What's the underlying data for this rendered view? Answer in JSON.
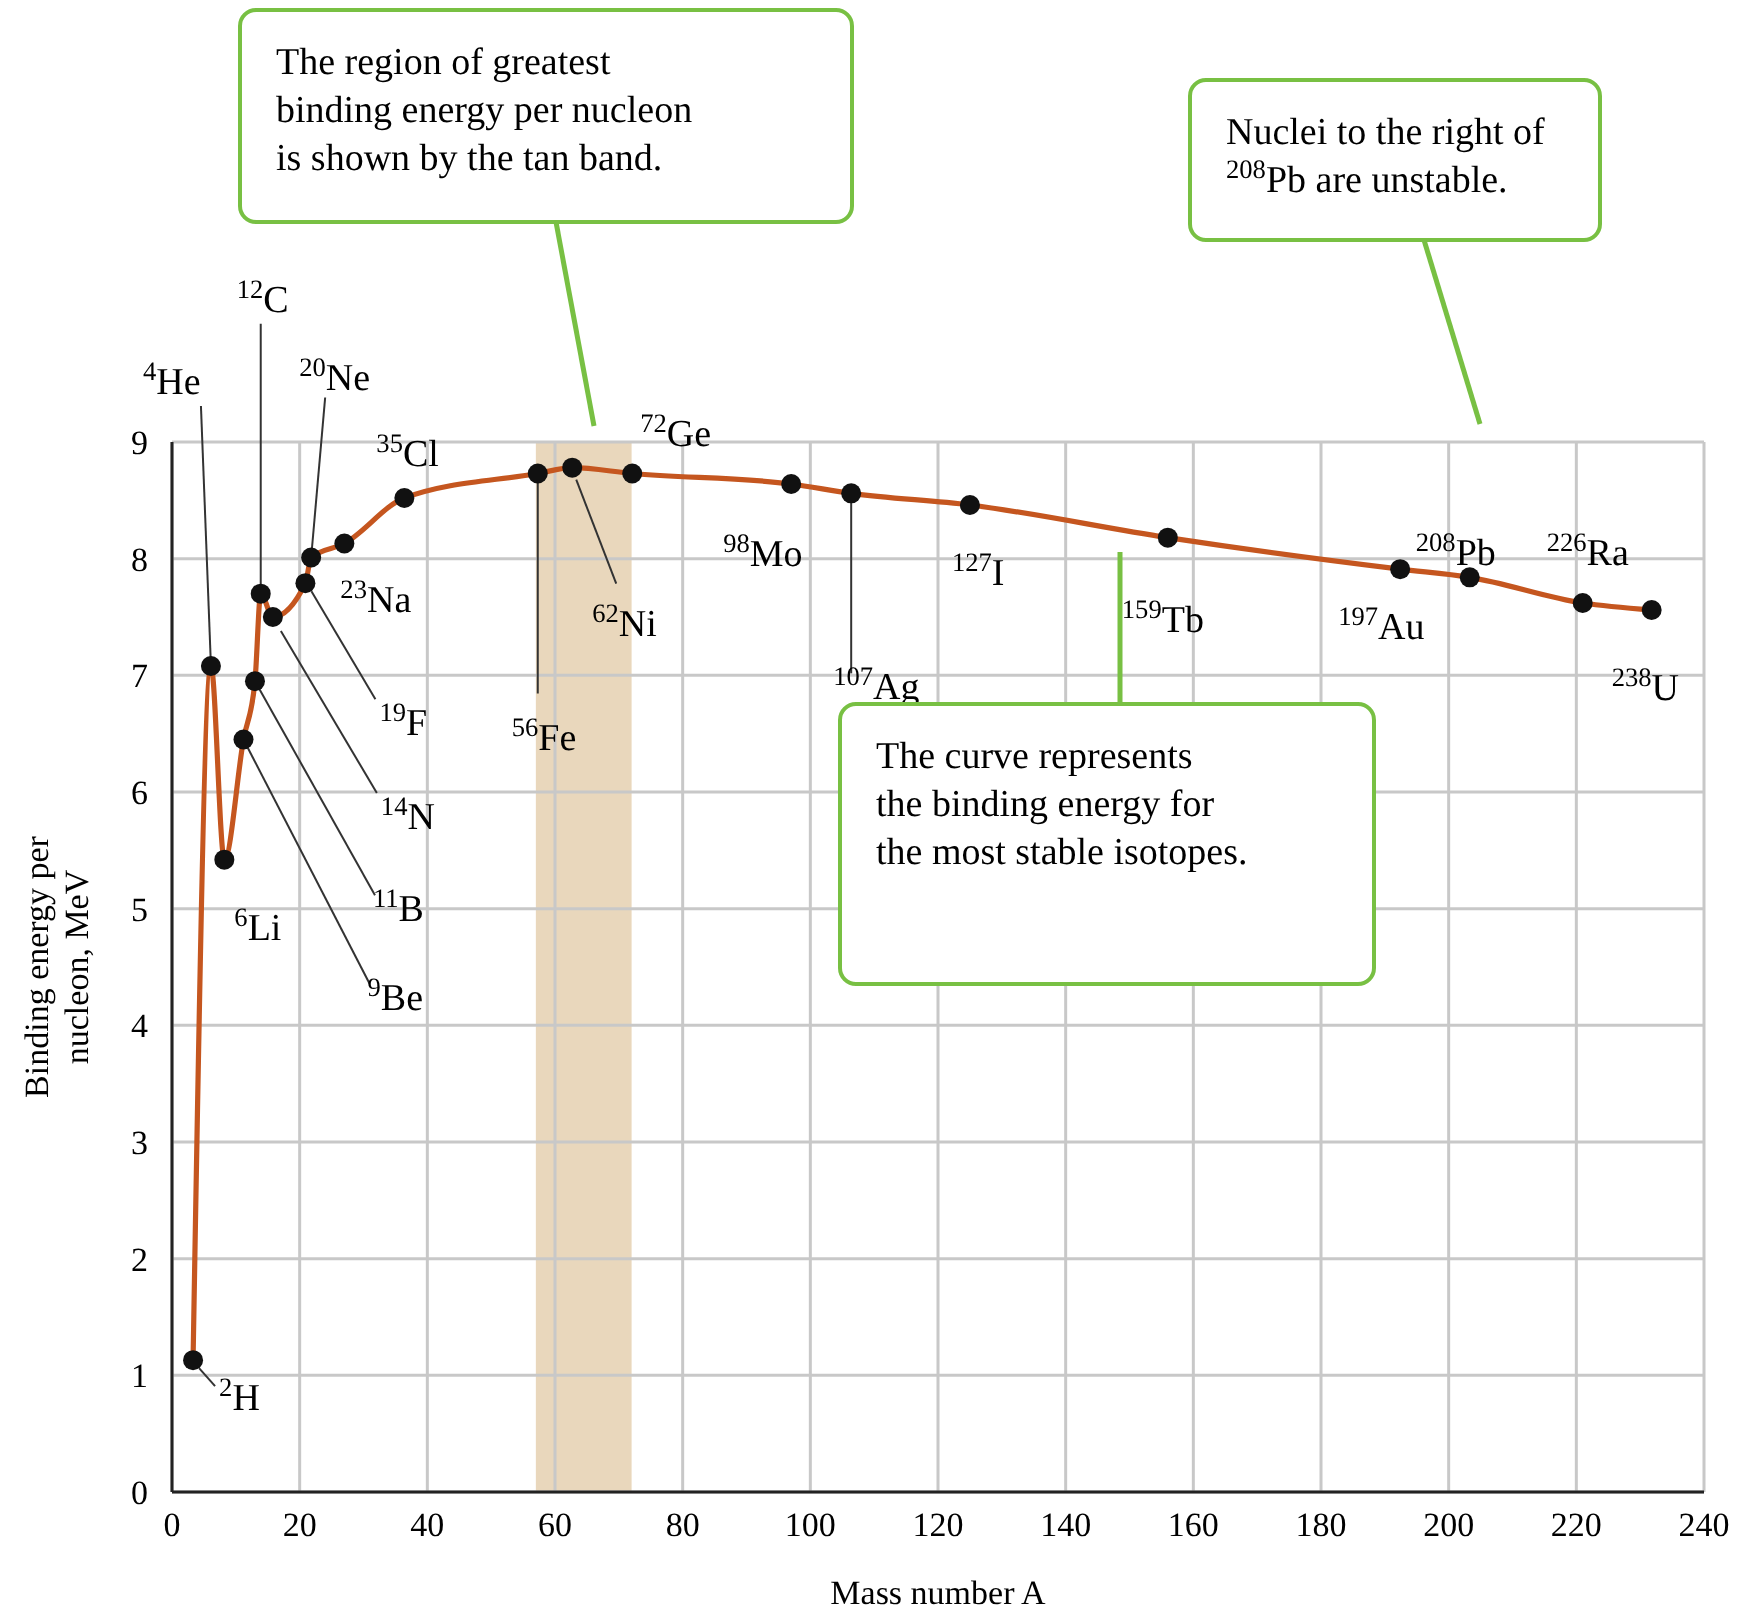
{
  "chart_data": {
    "type": "line",
    "xlabel": "Mass number A",
    "ylabel": "Binding energy per\nnucleon, MeV",
    "x": [
      3.3,
      6.1,
      8.2,
      11.2,
      13,
      13.9,
      15.8,
      20.9,
      21.8,
      27,
      36.4,
      57.3,
      62.7,
      72.1,
      97,
      106.4,
      125,
      156,
      192.4,
      203.3,
      221,
      231.8
    ],
    "series": [
      {
        "color": "#c5561f",
        "values": [
          1.13,
          7.08,
          5.42,
          6.45,
          6.95,
          7.7,
          7.5,
          7.79,
          8.01,
          8.13,
          8.52,
          8.73,
          8.78,
          8.73,
          8.64,
          8.56,
          8.46,
          8.18,
          7.91,
          7.84,
          7.62,
          7.56
        ]
      }
    ],
    "marker": "circle",
    "line_style": "solid",
    "grid": true,
    "xlim": [
      0,
      240
    ],
    "xticks": [
      0,
      20,
      40,
      60,
      80,
      100,
      120,
      140,
      160,
      180,
      200,
      220,
      240
    ],
    "ylim": [
      0,
      9
    ],
    "yticks": [
      0,
      1,
      2,
      3,
      4,
      5,
      6,
      7,
      8,
      9
    ],
    "bands": [
      {
        "axis": "x",
        "from": 57,
        "to": 72,
        "color": "#e9d7bc"
      }
    ],
    "annotations": [
      {
        "text": "$^{2}$H",
        "x": 3.3,
        "y": 1.13
      },
      {
        "text": "$^{4}$He",
        "x": 6.1,
        "y": 7.08
      },
      {
        "text": "$^{6}$Li",
        "x": 8.2,
        "y": 5.42
      },
      {
        "text": "$^{9}$Be",
        "x": 11.2,
        "y": 6.45
      },
      {
        "text": "$^{11}$B",
        "x": 13,
        "y": 6.95
      },
      {
        "text": "$^{12}$C",
        "x": 13.9,
        "y": 7.7
      },
      {
        "text": "$^{14}$N",
        "x": 15.8,
        "y": 7.5
      },
      {
        "text": "$^{19}$F",
        "x": 20.9,
        "y": 7.79
      },
      {
        "text": "$^{20}$Ne",
        "x": 21.8,
        "y": 8.01
      },
      {
        "text": "$^{23}$Na",
        "x": 27,
        "y": 8.13
      },
      {
        "text": "$^{35}$Cl",
        "x": 36.4,
        "y": 8.52
      },
      {
        "text": "$^{56}$Fe",
        "x": 57.3,
        "y": 8.73
      },
      {
        "text": "$^{62}$Ni",
        "x": 62.7,
        "y": 8.78
      },
      {
        "text": "$^{72}$Ge",
        "x": 72.1,
        "y": 8.73
      },
      {
        "text": "$^{98}$Mo",
        "x": 97,
        "y": 8.64
      },
      {
        "text": "$^{107}$Ag",
        "x": 106.4,
        "y": 8.56
      },
      {
        "text": "$^{127}$I",
        "x": 125,
        "y": 8.46
      },
      {
        "text": "$^{159}$Tb",
        "x": 156,
        "y": 8.18
      },
      {
        "text": "$^{197}$Au",
        "x": 192.4,
        "y": 7.91
      },
      {
        "text": "$^{208}$Pb",
        "x": 203.3,
        "y": 7.84
      },
      {
        "text": "$^{226}$Ra",
        "x": 221,
        "y": 7.62
      },
      {
        "text": "$^{238}$U",
        "x": 231.8,
        "y": 7.56
      },
      "The region of greatest\nbinding energy per nucleon\nis shown by the tan band.",
      "Nuclei to the right of\n$^{208}$Pb are unstable.",
      "The curve represents\nthe binding energy for\nthe most stable isotopes."
    ]
  }
}
